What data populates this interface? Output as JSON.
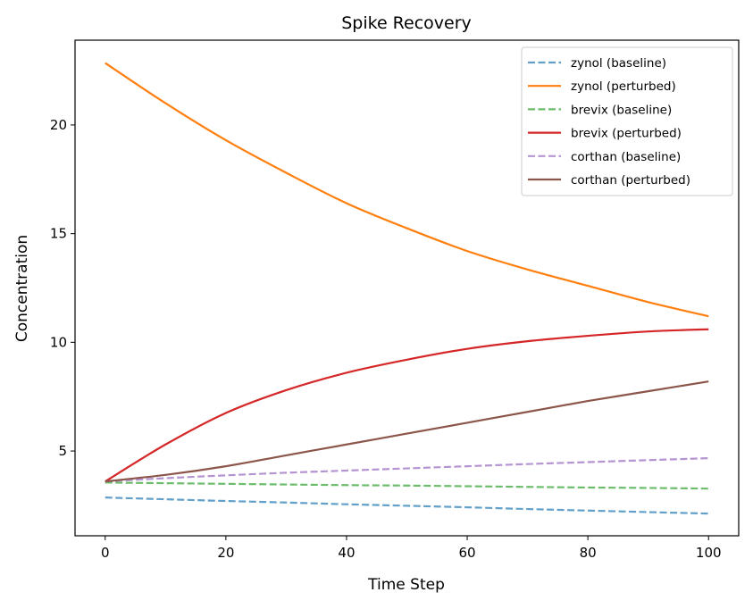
{
  "chart_data": {
    "type": "line",
    "title": "Spike Recovery",
    "xlabel": "Time Step",
    "ylabel": "Concentration",
    "xlim": [
      -5,
      105
    ],
    "ylim": [
      1.1,
      23.9
    ],
    "xticks": [
      0,
      20,
      40,
      60,
      80,
      100
    ],
    "yticks": [
      5,
      10,
      15,
      20
    ],
    "grid": false,
    "legend": "top-right",
    "x": [
      0,
      10,
      20,
      30,
      40,
      50,
      60,
      70,
      80,
      90,
      100
    ],
    "series": [
      {
        "name": "zynol (baseline)",
        "color": "#1f77b4",
        "style": "dashed",
        "values": [
          2.86,
          2.78,
          2.7,
          2.63,
          2.55,
          2.48,
          2.41,
          2.33,
          2.26,
          2.19,
          2.12
        ]
      },
      {
        "name": "zynol (perturbed)",
        "color": "#ff7f0e",
        "style": "solid",
        "values": [
          22.85,
          21.0,
          19.3,
          17.8,
          16.4,
          15.25,
          14.2,
          13.35,
          12.6,
          11.85,
          11.2
        ]
      },
      {
        "name": "brevix (baseline)",
        "color": "#2ca02c",
        "style": "dashed",
        "values": [
          3.55,
          3.52,
          3.49,
          3.46,
          3.43,
          3.41,
          3.38,
          3.35,
          3.32,
          3.3,
          3.27
        ]
      },
      {
        "name": "brevix (perturbed)",
        "color": "#d62728",
        "style": "solid",
        "values": [
          3.6,
          5.3,
          6.75,
          7.8,
          8.6,
          9.2,
          9.7,
          10.05,
          10.3,
          10.5,
          10.6
        ]
      },
      {
        "name": "corthan (baseline)",
        "color": "#9467bd",
        "style": "dashed",
        "values": [
          3.6,
          3.75,
          3.88,
          4.0,
          4.1,
          4.2,
          4.3,
          4.4,
          4.49,
          4.58,
          4.67
        ]
      },
      {
        "name": "corthan (perturbed)",
        "color": "#8c564b",
        "style": "solid",
        "values": [
          3.6,
          3.9,
          4.3,
          4.8,
          5.3,
          5.8,
          6.3,
          6.8,
          7.3,
          7.75,
          8.2
        ]
      }
    ]
  }
}
